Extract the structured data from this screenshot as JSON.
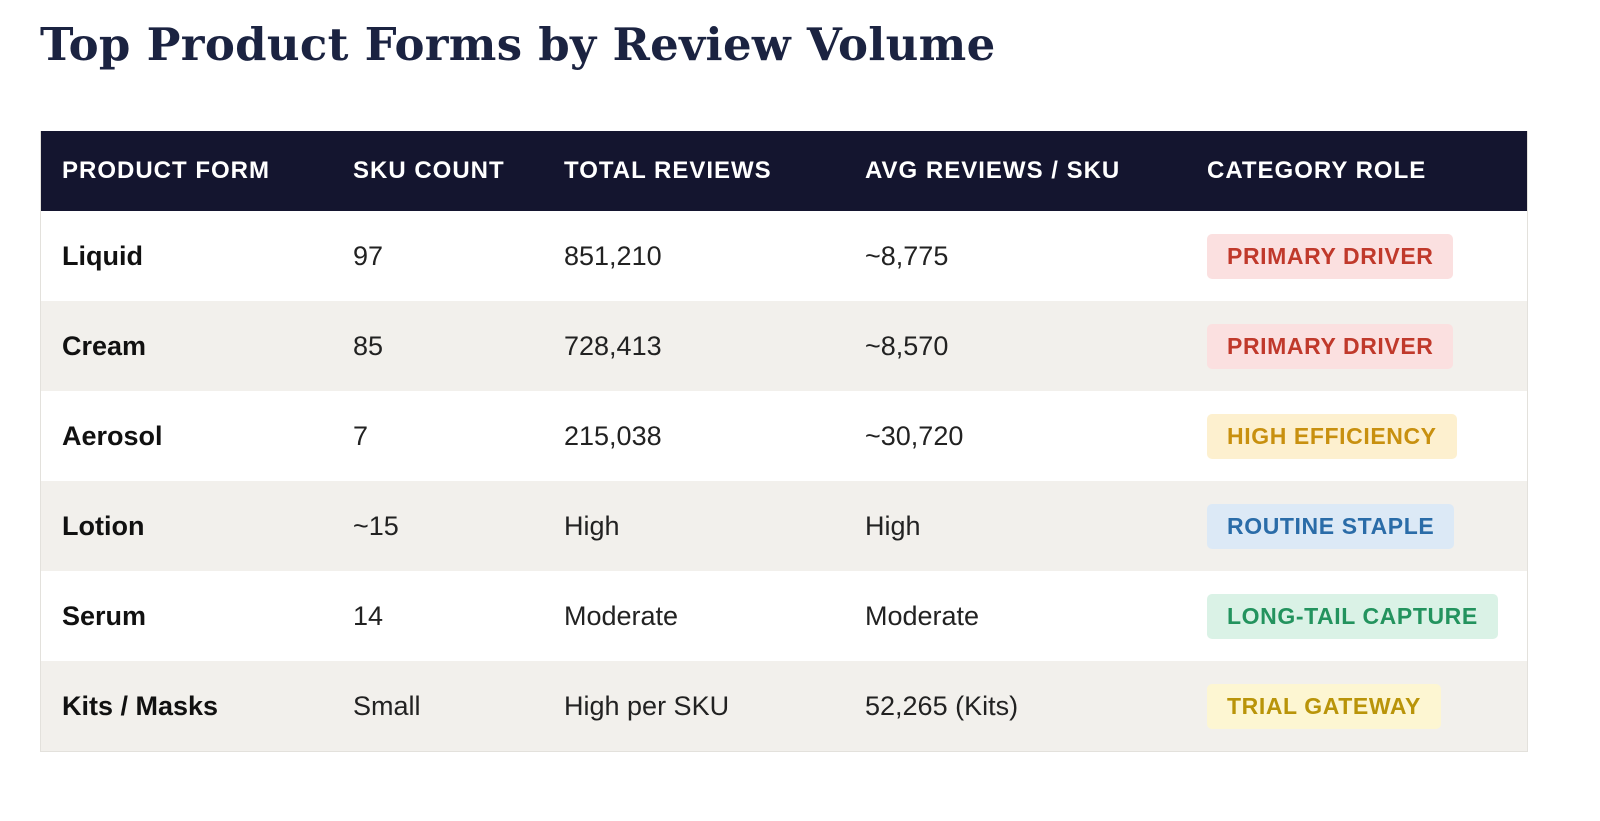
{
  "title": "Top Product Forms by Review Volume",
  "table": {
    "headers": [
      "PRODUCT FORM",
      "SKU COUNT",
      "TOTAL REVIEWS",
      "AVG REVIEWS / SKU",
      "CATEGORY ROLE"
    ],
    "rows": [
      {
        "form": "Liquid",
        "sku": "97",
        "total": "851,210",
        "avg": "~8,775",
        "role": "PRIMARY DRIVER",
        "role_color": "#c0392b",
        "role_bg": "#fbe0e0"
      },
      {
        "form": "Cream",
        "sku": "85",
        "total": "728,413",
        "avg": "~8,570",
        "role": "PRIMARY DRIVER",
        "role_color": "#c0392b",
        "role_bg": "#fbe0e0"
      },
      {
        "form": "Aerosol",
        "sku": "7",
        "total": "215,038",
        "avg": "~30,720",
        "role": "HIGH EFFICIENCY",
        "role_color": "#c8900f",
        "role_bg": "#fdf0cf"
      },
      {
        "form": "Lotion",
        "sku": "~15",
        "total": "High",
        "avg": "High",
        "role": "ROUTINE STAPLE",
        "role_color": "#2a6ca8",
        "role_bg": "#dce9f6"
      },
      {
        "form": "Serum",
        "sku": "14",
        "total": "Moderate",
        "avg": "Moderate",
        "role": "LONG-TAIL CAPTURE",
        "role_color": "#23935e",
        "role_bg": "#daf2e6"
      },
      {
        "form": "Kits / Masks",
        "sku": "Small",
        "total": "High per SKU",
        "avg": "52,265 (Kits)",
        "role": "TRIAL GATEWAY",
        "role_color": "#b99409",
        "role_bg": "#fdf6d2"
      }
    ]
  }
}
